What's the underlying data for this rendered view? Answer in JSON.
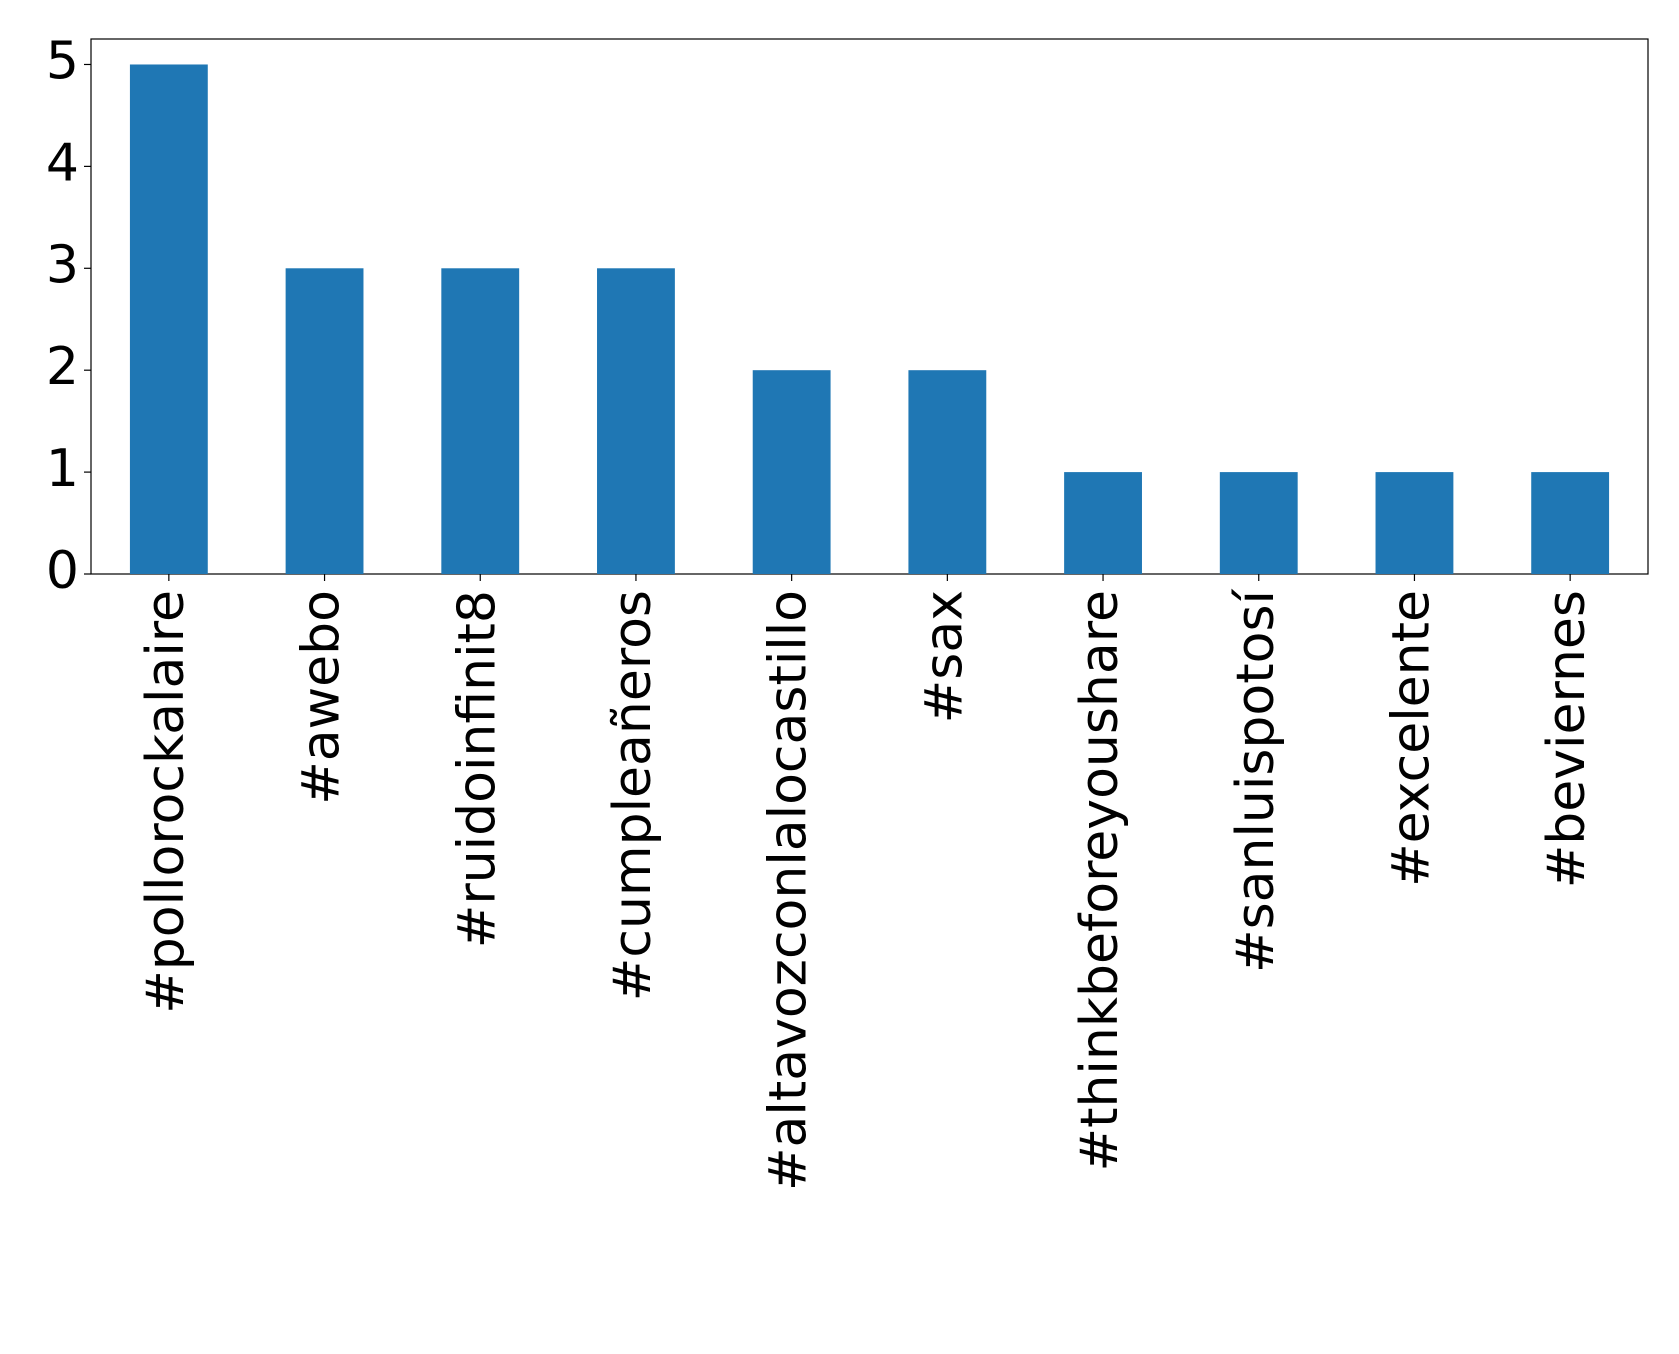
{
  "chart_data": {
    "type": "bar",
    "categories": [
      "#pollorockalaire",
      "#awebo",
      "#ruidoinfinit8",
      "#cumpleañeros",
      "#altavozconlalocastillo",
      "#sax",
      "#thinkbeforeyoushare",
      "#sanluispotosí",
      "#excelente",
      "#beviernes"
    ],
    "values": [
      5,
      3,
      3,
      3,
      2,
      2,
      1,
      1,
      1,
      1
    ],
    "color": "#1f77b4",
    "ylim": [
      0,
      5.25
    ],
    "yticks": [
      0,
      1,
      2,
      3,
      4,
      5
    ],
    "grid": false
  }
}
